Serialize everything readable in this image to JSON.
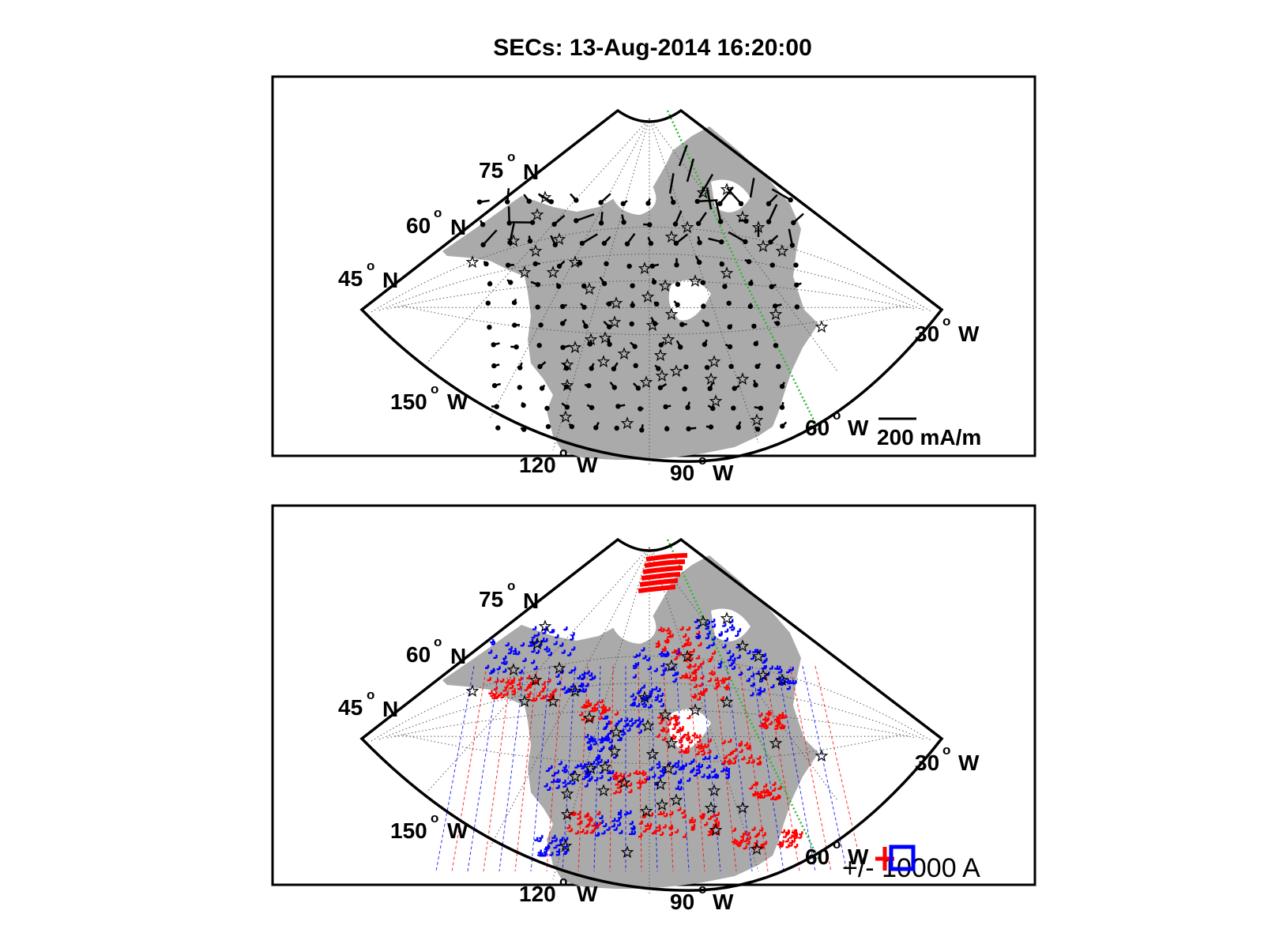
{
  "chart_data": [
    {
      "type": "scatter",
      "title": "SECs: 13-Aug-2014 16:20:00",
      "projection": "polar map sector",
      "lat_labels": [
        {
          "deg": "75",
          "hem": "N"
        },
        {
          "deg": "60",
          "hem": "N"
        },
        {
          "deg": "45",
          "hem": "N"
        }
      ],
      "lon_labels": [
        {
          "deg": "30",
          "hem": "W"
        },
        {
          "deg": "60",
          "hem": "W"
        },
        {
          "deg": "90",
          "hem": "W"
        },
        {
          "deg": "120",
          "hem": "W"
        },
        {
          "deg": "150",
          "hem": "W"
        }
      ],
      "scale_label": "200 mA/m",
      "colors": {
        "land": "#aaaaaa",
        "vectors": "#000000",
        "terminator": "#2db82d"
      }
    },
    {
      "type": "scatter",
      "title": "",
      "projection": "polar map sector",
      "lat_labels": [
        {
          "deg": "75",
          "hem": "N"
        },
        {
          "deg": "60",
          "hem": "N"
        },
        {
          "deg": "45",
          "hem": "N"
        }
      ],
      "lon_labels": [
        {
          "deg": "30",
          "hem": "W"
        },
        {
          "deg": "60",
          "hem": "W"
        },
        {
          "deg": "90",
          "hem": "W"
        },
        {
          "deg": "120",
          "hem": "W"
        },
        {
          "deg": "150",
          "hem": "W"
        }
      ],
      "scale_label": "+/- 10000 A",
      "series": [
        {
          "symbol": "+",
          "color": "#ff0000"
        },
        {
          "symbol": "square",
          "color": "#0000ff"
        }
      ],
      "colors": {
        "land": "#aaaaaa",
        "positive": "#ff0000",
        "negative": "#0000ff",
        "terminator": "#2db82d"
      }
    }
  ]
}
